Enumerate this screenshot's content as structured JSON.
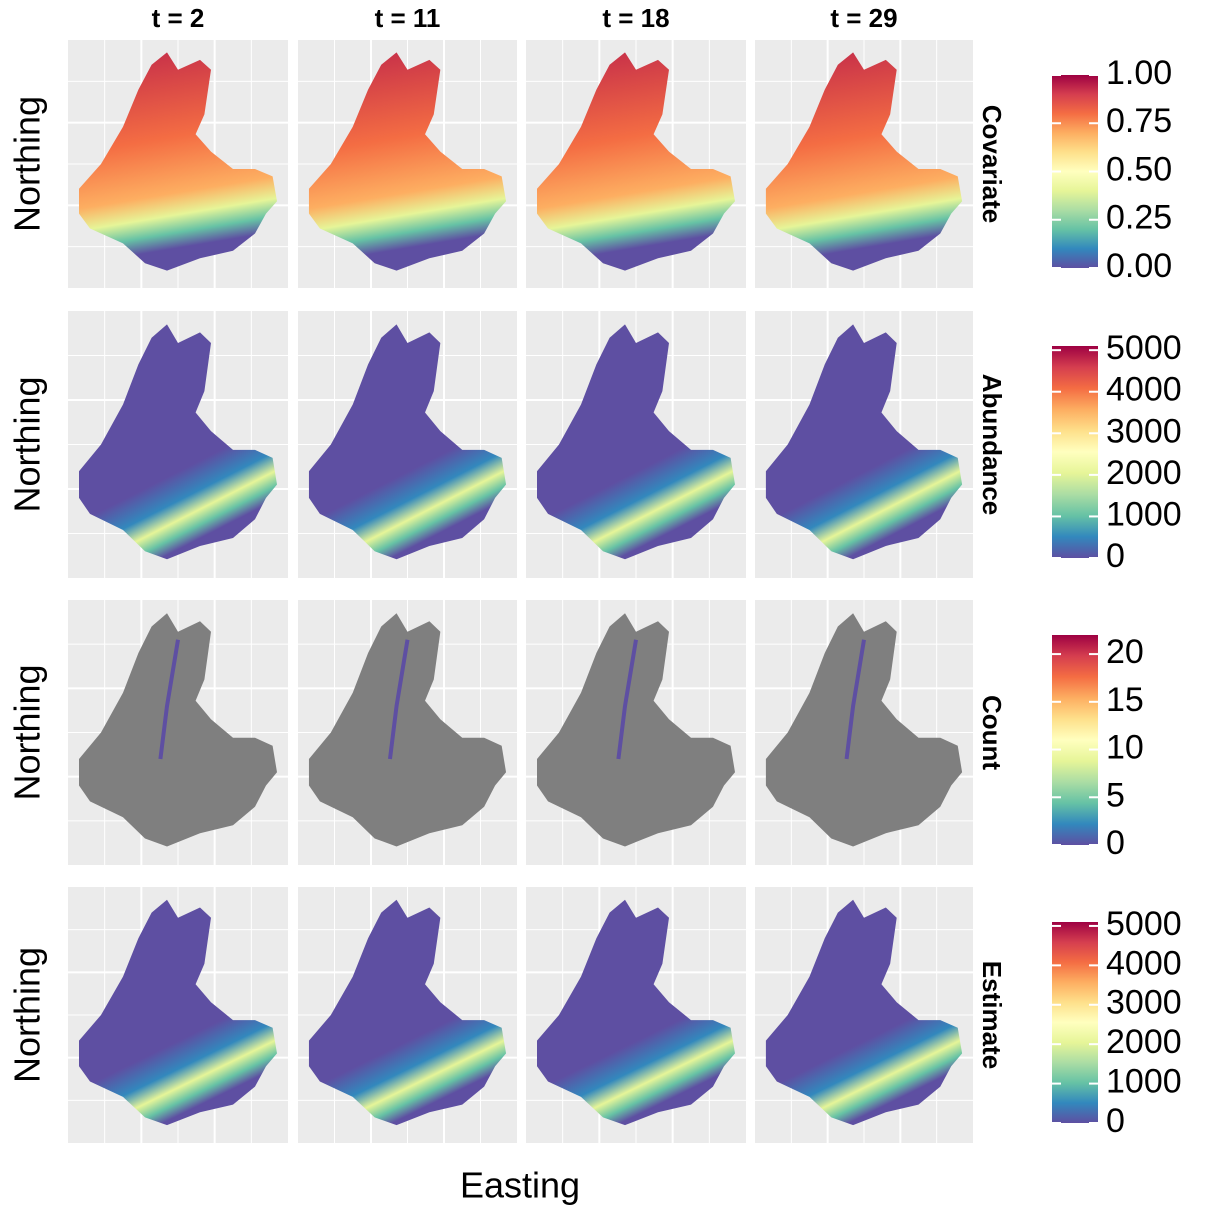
{
  "chart_data": {
    "type": "raster_facet",
    "xlabel": "Easting",
    "ylabel": "Northing",
    "columns": [
      "t = 2",
      "t = 11",
      "t = 18",
      "t = 29"
    ],
    "palette": [
      "#5e4fa2",
      "#3288bd",
      "#66c2a5",
      "#abdda4",
      "#e6f598",
      "#ffffbf",
      "#fee08b",
      "#fdae61",
      "#f46d43",
      "#d53e4f",
      "#9e0142"
    ],
    "rows": [
      {
        "name": "Covariate",
        "lim": [
          0,
          1
        ],
        "ticks": [
          {
            "value": 0,
            "label": "0.00"
          },
          {
            "value": 0.25,
            "label": "0.25"
          },
          {
            "value": 0.5,
            "label": "0.50"
          },
          {
            "value": 0.75,
            "label": "0.75"
          },
          {
            "value": 1,
            "label": "1.00"
          }
        ]
      },
      {
        "name": "Abundance",
        "lim": [
          0,
          5100
        ],
        "ticks": [
          0,
          1000,
          2000,
          3000,
          4000,
          5000
        ]
      },
      {
        "name": "Count",
        "lim": [
          0,
          22
        ],
        "ticks": [
          0,
          5,
          10,
          15,
          20
        ]
      },
      {
        "name": "Estimate",
        "lim": [
          0,
          5100
        ],
        "ticks": [
          0,
          1000,
          2000,
          3000,
          4000,
          5000
        ]
      }
    ]
  }
}
